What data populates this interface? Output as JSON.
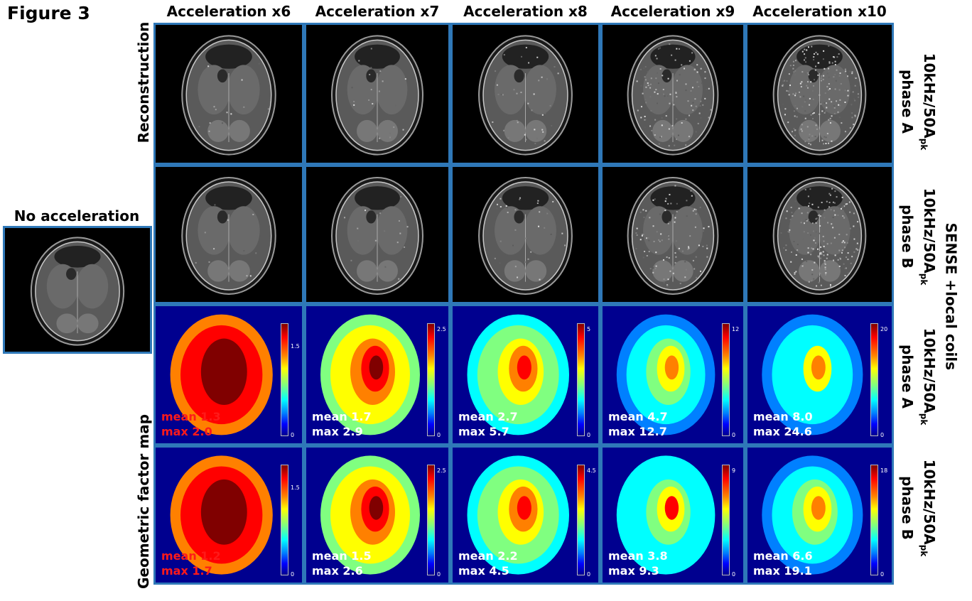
{
  "figure_title": "Figure 3",
  "no_accel_label": "No acceleration",
  "row_group_left_top": "Reconstruction",
  "row_group_left_bottom": "Geometric factor map",
  "right_group_label": "SENSE +local coils",
  "row_labels": [
    {
      "line1": "10kHz/50A",
      "sub": "pk",
      "line2": "phase A"
    },
    {
      "line1": "10kHz/50A",
      "sub": "pk",
      "line2": "phase B"
    },
    {
      "line1": "10kHz/50A",
      "sub": "pk",
      "line2": "phase A"
    },
    {
      "line1": "10kHz/50A",
      "sub": "pk",
      "line2": "phase B"
    }
  ],
  "columns": [
    {
      "label": "Acceleration x6",
      "noise": 0.05,
      "gmap_A": {
        "mean": "mean 1.3",
        "max": "max 2.0",
        "cbar_top": "",
        "cbar_mid": "1.5",
        "cbar_bottom": "0",
        "stat_color": "red",
        "level": 0.75
      },
      "gmap_B": {
        "mean": "mean 1.2",
        "max": "max 1.7",
        "cbar_top": "",
        "cbar_mid": "1.5",
        "cbar_bottom": "0",
        "stat_color": "red",
        "level": 0.78
      }
    },
    {
      "label": "Acceleration x7",
      "noise": 0.08,
      "gmap_A": {
        "mean": "mean 1.7",
        "max": "max 2.9",
        "cbar_top": "2.5",
        "cbar_mid": "",
        "cbar_bottom": "0",
        "stat_color": "white",
        "level": 0.55
      },
      "gmap_B": {
        "mean": "mean 1.5",
        "max": "max 2.6",
        "cbar_top": "2.5",
        "cbar_mid": "",
        "cbar_bottom": "0",
        "stat_color": "white",
        "level": 0.55
      }
    },
    {
      "label": "Acceleration x8",
      "noise": 0.15,
      "gmap_A": {
        "mean": "mean 2.7",
        "max": "max 5.7",
        "cbar_top": "5",
        "cbar_mid": "",
        "cbar_bottom": "0",
        "stat_color": "white",
        "level": 0.4
      },
      "gmap_B": {
        "mean": "mean 2.2",
        "max": "max 4.5",
        "cbar_top": "4.5",
        "cbar_mid": "",
        "cbar_bottom": "0",
        "stat_color": "white",
        "level": 0.42
      }
    },
    {
      "label": "Acceleration x9",
      "noise": 0.45,
      "gmap_A": {
        "mean": "mean 4.7",
        "max": "max 12.7",
        "cbar_top": "12",
        "cbar_mid": "",
        "cbar_bottom": "0",
        "stat_color": "white",
        "level": 0.3
      },
      "gmap_B": {
        "mean": "mean 3.8",
        "max": "max 9.3",
        "cbar_top": "9",
        "cbar_mid": "",
        "cbar_bottom": "0",
        "stat_color": "white",
        "level": 0.32
      }
    },
    {
      "label": "Acceleration x10",
      "noise": 0.8,
      "gmap_A": {
        "mean": "mean 8.0",
        "max": "max 24.6",
        "cbar_top": "20",
        "cbar_mid": "",
        "cbar_bottom": "0",
        "stat_color": "white",
        "level": 0.25
      },
      "gmap_B": {
        "mean": "mean 6.6",
        "max": "max 19.1",
        "cbar_top": "18",
        "cbar_mid": "",
        "cbar_bottom": "0",
        "stat_color": "white",
        "level": 0.27
      }
    }
  ],
  "colors": {
    "panel_border": "#2f78b8",
    "stat_red": "#ff1a1a",
    "gmap_bg": "#00008f"
  }
}
